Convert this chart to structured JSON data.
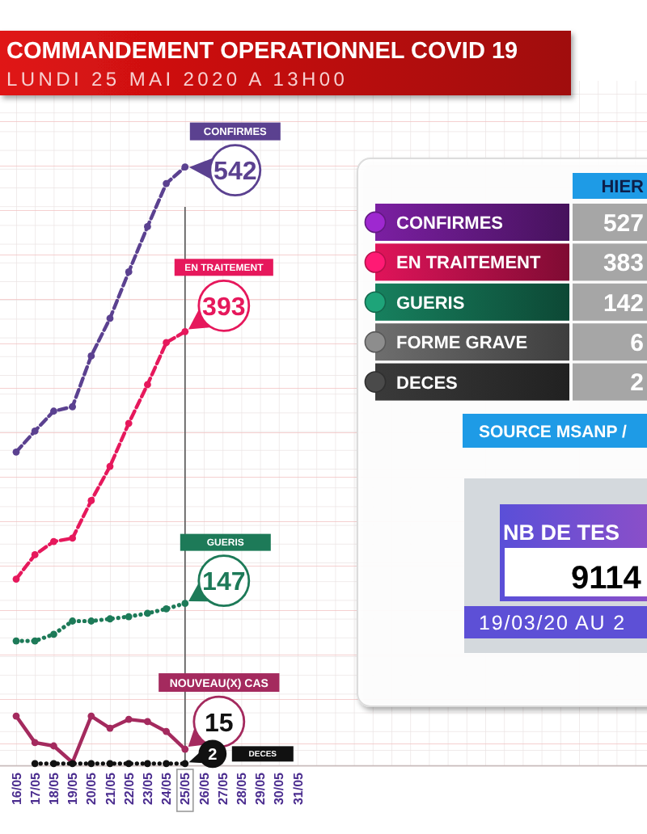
{
  "chart_data": [
    {
      "type": "line",
      "title": "COMMANDEMENT OPERATIONNEL COVID 19",
      "subtitle": "LUNDI 25 MAI 2020 A 13H00",
      "categories": [
        "16/05",
        "17/05",
        "18/05",
        "19/05",
        "20/05",
        "21/05",
        "22/05",
        "23/05",
        "24/05",
        "25/05",
        "26/05",
        "27/05",
        "28/05",
        "29/05",
        "30/05",
        "31/05"
      ],
      "series": [
        {
          "name": "CONFIRMES",
          "color": "#5b4190",
          "line_style": "dashed",
          "values": [
            284,
            303,
            321,
            325,
            371,
            405,
            447,
            488,
            527,
            542,
            null,
            null,
            null,
            null,
            null,
            null
          ],
          "value_labels": [
            null,
            null,
            null,
            null,
            null,
            null,
            null,
            null,
            null,
            "542",
            null,
            null,
            null,
            null,
            null,
            null
          ]
        },
        {
          "name": "EN TRAITEMENT",
          "color": "#e6185c",
          "line_style": "dashed",
          "values": [
            169,
            191,
            203,
            206,
            240,
            271,
            310,
            345,
            383,
            393,
            null,
            null,
            null,
            null,
            null,
            null
          ],
          "value_labels": [
            null,
            null,
            null,
            null,
            null,
            null,
            null,
            null,
            null,
            "393",
            null,
            null,
            null,
            null,
            null,
            null
          ]
        },
        {
          "name": "GUERIS",
          "color": "#1d7a58",
          "line_style": "dotted",
          "values": [
            113,
            113,
            119,
            131,
            131,
            133,
            135,
            138,
            142,
            147,
            null,
            null,
            null,
            null,
            null,
            null
          ],
          "value_labels": [
            null,
            null,
            null,
            null,
            null,
            null,
            null,
            null,
            null,
            "147",
            null,
            null,
            null,
            null,
            null,
            null
          ]
        },
        {
          "name": "NOUVEAU(X) CAS",
          "color": "#a42a5e",
          "line_style": "solid",
          "values": [
            45,
            21,
            18,
            3,
            45,
            34,
            42,
            40,
            31,
            15,
            null,
            null,
            null,
            null,
            null,
            null
          ],
          "value_labels": [
            null,
            null,
            null,
            null,
            null,
            null,
            null,
            null,
            null,
            "15",
            null,
            null,
            null,
            null,
            null,
            null
          ]
        },
        {
          "name": "DECES",
          "color": "#111111",
          "line_style": "dotted",
          "values": [
            null,
            2,
            2,
            2,
            2,
            2,
            2,
            2,
            2,
            2,
            null,
            null,
            null,
            null,
            null,
            null
          ],
          "value_labels": [
            null,
            null,
            null,
            null,
            null,
            null,
            null,
            null,
            null,
            "2",
            null,
            null,
            null,
            null,
            null,
            null
          ]
        }
      ],
      "marker": "circle",
      "tick_labels": "x",
      "ref_lines": [
        {
          "axis": "x",
          "value": "25/05",
          "color": "#555555"
        }
      ]
    },
    {
      "type": "other",
      "categories": [
        "CONFIRMES",
        "EN TRAITEMENT",
        "GUERIS",
        "FORME GRAVE",
        "DECES"
      ],
      "colors": [
        "#7b1fa2",
        "#e0145a",
        "#17805e",
        "#6e6e6e",
        "#3a3a3a"
      ],
      "series": [
        {
          "name": "HIER",
          "color": "#a6a6a6",
          "values": [
            527,
            383,
            142,
            6,
            2
          ]
        }
      ],
      "data_labels": true,
      "annotations": [
        "SOURCE MSANP /",
        "NB DE TES",
        "9114",
        "19/03/20 AU 2"
      ]
    }
  ]
}
